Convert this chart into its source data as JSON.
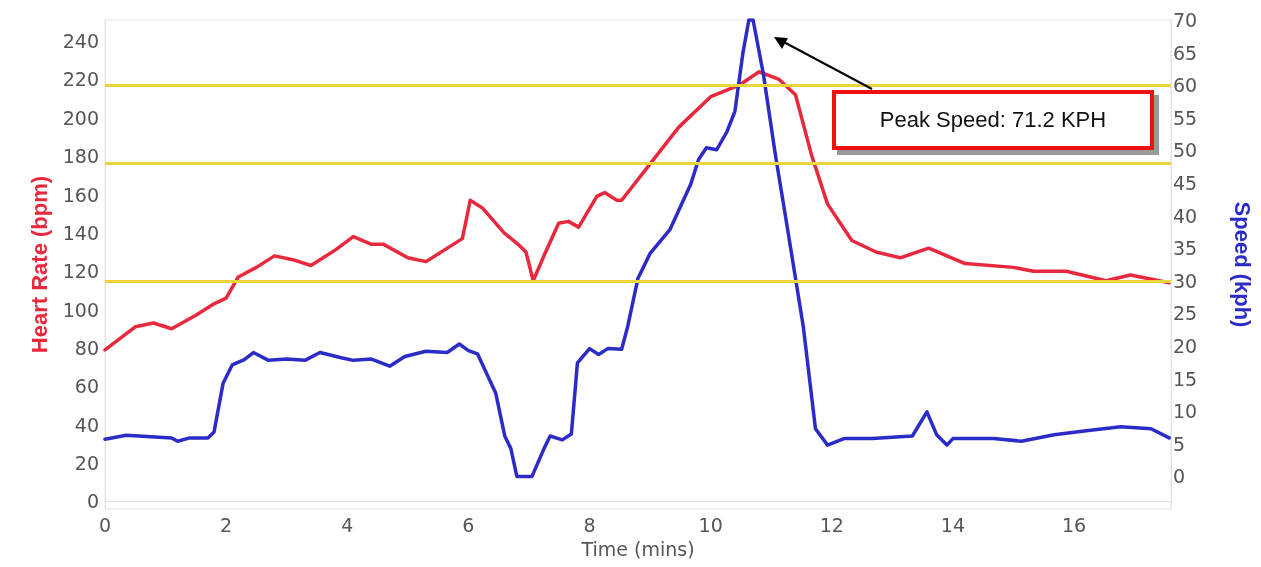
{
  "chart_data": {
    "type": "line",
    "xlabel": "Time (mins)",
    "ylabel": "Heart Rate (bpm)",
    "y2label": "Speed (kph)",
    "xlim": [
      0,
      17.6
    ],
    "xticks": [
      0,
      2,
      4,
      6,
      8,
      10,
      12,
      14,
      16
    ],
    "ylim": [
      -4,
      251
    ],
    "yticks": [
      0,
      20,
      40,
      60,
      80,
      100,
      120,
      140,
      160,
      180,
      200,
      220,
      240
    ],
    "y2lim": [
      -5,
      70
    ],
    "y2ticks": [
      0,
      5,
      10,
      15,
      20,
      25,
      30,
      35,
      40,
      45,
      50,
      55,
      60,
      65,
      70
    ],
    "grid": false,
    "marker": "none",
    "line_style": "solid",
    "series": [
      {
        "color": "#e8283c",
        "x": [
          0,
          0.5,
          0.8,
          1.1,
          1.5,
          1.8,
          2.0,
          2.2,
          2.5,
          2.8,
          3.1,
          3.4,
          3.8,
          4.1,
          4.4,
          4.6,
          5.0,
          5.3,
          5.6,
          5.9,
          6.03,
          6.23,
          6.59,
          6.82,
          6.95,
          7.07,
          7.26,
          7.49,
          7.65,
          7.82,
          8.12,
          8.25,
          8.45,
          8.53,
          9.0,
          9.47,
          10.0,
          10.47,
          10.8,
          11.13,
          11.4,
          11.67,
          11.93,
          12.33,
          12.73,
          13.13,
          13.6,
          14.2,
          15.0,
          15.33,
          15.87,
          16.53,
          16.93,
          17.57
        ],
        "values": [
          79,
          91,
          93,
          90,
          97,
          103,
          106,
          117,
          122,
          128,
          126,
          123,
          131,
          138,
          134,
          134,
          127,
          125,
          131,
          137,
          157,
          153,
          140,
          134,
          130,
          115,
          129,
          145,
          146,
          143,
          159,
          161,
          157,
          157,
          176,
          195,
          211,
          217,
          224,
          220,
          212,
          180,
          155,
          136,
          130,
          127,
          132,
          124,
          122,
          120,
          120,
          115,
          118,
          114
        ]
      },
      {
        "color": "#2b2bc8",
        "axis": "y2",
        "x": [
          0,
          0.35,
          1.1,
          1.2,
          1.4,
          1.7,
          1.8,
          1.95,
          2.1,
          2.3,
          2.45,
          2.7,
          3.0,
          3.3,
          3.55,
          3.9,
          4.1,
          4.4,
          4.7,
          4.95,
          5.3,
          5.65,
          5.85,
          6.0,
          6.15,
          6.45,
          6.6,
          6.7,
          6.8,
          7.05,
          7.25,
          7.35,
          7.55,
          7.7,
          7.8,
          8.0,
          8.15,
          8.3,
          8.53,
          8.63,
          8.8,
          9.0,
          9.33,
          9.67,
          9.8,
          9.93,
          10.1,
          10.27,
          10.4,
          10.53,
          10.63,
          10.7,
          10.87,
          11.07,
          11.27,
          11.53,
          11.73,
          11.93,
          12.2,
          12.67,
          13.33,
          13.57,
          13.73,
          13.9,
          14.0,
          14.67,
          15.13,
          15.67,
          16.2,
          16.77,
          17.27,
          17.57
        ],
        "values": [
          5.7,
          6.3,
          5.9,
          5.4,
          5.9,
          5.9,
          6.8,
          14.3,
          17.1,
          17.9,
          19,
          17.8,
          18,
          17.8,
          19,
          18.2,
          17.8,
          18,
          16.9,
          18.4,
          19.2,
          19,
          20.3,
          19.3,
          18.8,
          12.8,
          6.2,
          4.3,
          0,
          0,
          4.3,
          6.2,
          5.6,
          6.5,
          17.4,
          19.6,
          18.7,
          19.6,
          19.5,
          23,
          30.4,
          34.2,
          37.9,
          44.8,
          48.6,
          50.4,
          50.1,
          52.9,
          56,
          64.8,
          70,
          70,
          61.7,
          49.2,
          37.9,
          22.9,
          7.3,
          4.8,
          5.8,
          5.8,
          6.2,
          9.9,
          6.4,
          4.8,
          5.8,
          5.8,
          5.4,
          6.4,
          7,
          7.6,
          7.3,
          5.9
        ]
      }
    ],
    "ref_lines": [
      {
        "axis": "y2",
        "value": 60,
        "color": "#ecd43c"
      },
      {
        "axis": "y2",
        "value": 48,
        "color": "#ecd43c"
      },
      {
        "axis": "y2",
        "value": 30,
        "color": "#ecd43c"
      }
    ],
    "annotations": [
      "Peak Speed: 71.2 KPH"
    ]
  }
}
